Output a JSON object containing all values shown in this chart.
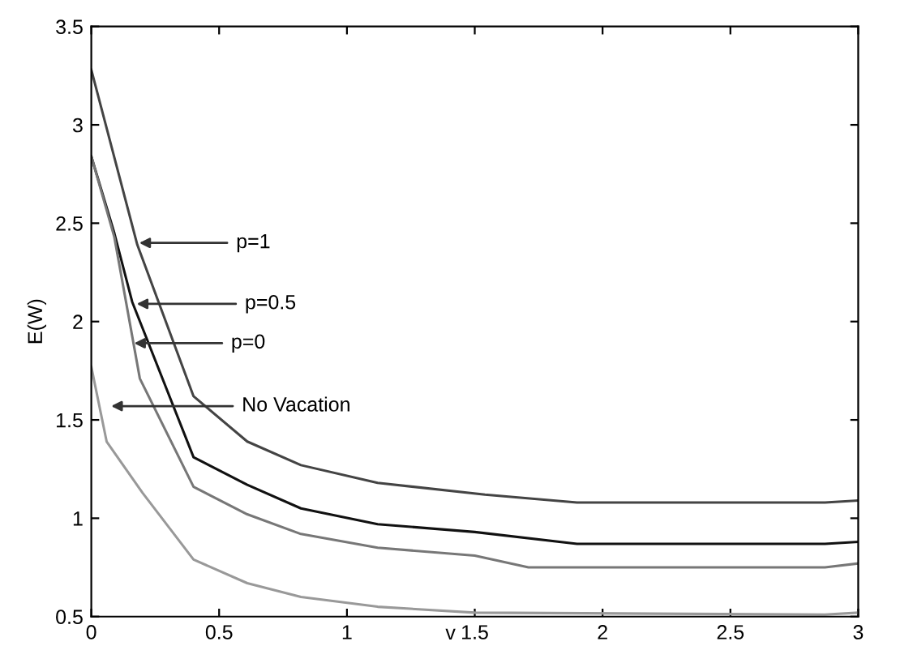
{
  "chart_data": {
    "type": "line",
    "xlabel": "v",
    "ylabel": "E(W)",
    "xlim": [
      0,
      3
    ],
    "ylim": [
      0.5,
      3.5
    ],
    "xticks": [
      0,
      0.5,
      1,
      1.5,
      2,
      2.5,
      3
    ],
    "yticks": [
      0.5,
      1,
      1.5,
      2,
      2.5,
      3,
      3.5
    ],
    "grid": false,
    "marker": "none",
    "line_style": "solid",
    "series": [
      {
        "color": "#444444",
        "x": [
          0,
          0.18,
          0.4,
          0.61,
          0.82,
          1.12,
          1.54,
          1.9,
          2.87,
          3
        ],
        "values": [
          3.28,
          2.39,
          1.62,
          1.39,
          1.27,
          1.18,
          1.12,
          1.08,
          1.08,
          1.09
        ]
      },
      {
        "color": "#111111",
        "x": [
          0,
          0.09,
          0.16,
          0.4,
          0.61,
          0.82,
          1.12,
          1.5,
          1.9,
          2.87,
          3
        ],
        "values": [
          2.84,
          2.45,
          2.1,
          1.31,
          1.17,
          1.05,
          0.97,
          0.93,
          0.87,
          0.87,
          0.88
        ]
      },
      {
        "color": "#777777",
        "x": [
          0,
          0.09,
          0.19,
          0.4,
          0.61,
          0.82,
          1.12,
          1.5,
          1.71,
          2.87,
          3
        ],
        "values": [
          2.84,
          2.43,
          1.71,
          1.16,
          1.02,
          0.92,
          0.85,
          0.81,
          0.75,
          0.75,
          0.77
        ]
      },
      {
        "color": "#999999",
        "x": [
          0,
          0.06,
          0.2,
          0.4,
          0.61,
          0.82,
          1.12,
          1.5,
          2.87,
          3
        ],
        "values": [
          1.77,
          1.39,
          1.13,
          0.79,
          0.67,
          0.6,
          0.55,
          0.52,
          0.51,
          0.52
        ]
      }
    ],
    "annotations": [
      {
        "text": "p=1",
        "x": 0.17,
        "y": 2.4
      },
      {
        "text": "p=0.5",
        "x": 0.16,
        "y": 2.09
      },
      {
        "text": "p=0",
        "x": 0.15,
        "y": 1.89
      },
      {
        "text": "No Vacation",
        "x": 0.06,
        "y": 1.57
      }
    ]
  }
}
